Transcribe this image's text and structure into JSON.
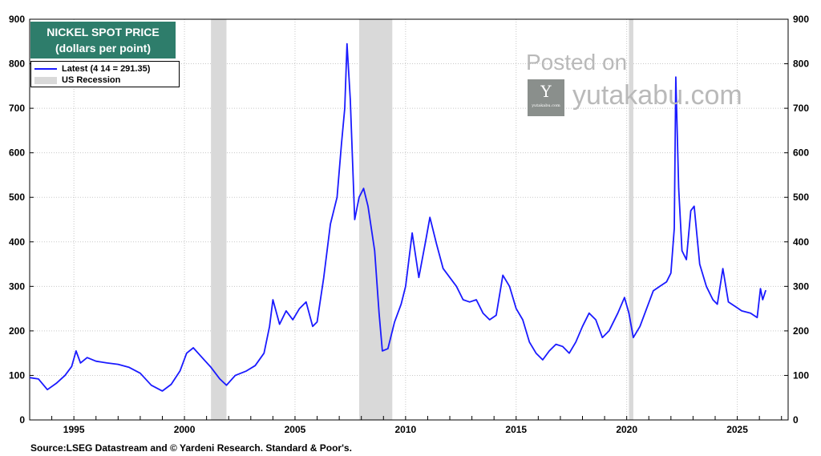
{
  "chart_data": {
    "type": "line",
    "title": "NICKEL SPOT PRICE",
    "subtitle": "(dollars per point)",
    "ylim": [
      0,
      900
    ],
    "xlim": [
      1993.0,
      2027.3
    ],
    "y_ticks": [
      0,
      100,
      200,
      300,
      400,
      500,
      600,
      700,
      800,
      900
    ],
    "x_ticks": [
      1995,
      2000,
      2005,
      2010,
      2015,
      2020,
      2025
    ],
    "grid": true,
    "legend_placement": "top-left",
    "legend": {
      "latest_label": "Latest (4 14 = 291.35)",
      "recession_label": "US Recession"
    },
    "recessions": [
      [
        2001.2,
        2001.9
      ],
      [
        2007.9,
        2009.4
      ],
      [
        2020.1,
        2020.3
      ]
    ],
    "series": [
      {
        "color": "#1a1aff",
        "points": [
          [
            1993.0,
            95
          ],
          [
            1993.4,
            92
          ],
          [
            1993.8,
            68
          ],
          [
            1994.2,
            82
          ],
          [
            1994.6,
            100
          ],
          [
            1994.9,
            120
          ],
          [
            1995.1,
            155
          ],
          [
            1995.3,
            128
          ],
          [
            1995.6,
            140
          ],
          [
            1996.0,
            132
          ],
          [
            1996.5,
            128
          ],
          [
            1997.0,
            125
          ],
          [
            1997.5,
            118
          ],
          [
            1998.0,
            105
          ],
          [
            1998.5,
            78
          ],
          [
            1999.0,
            65
          ],
          [
            1999.4,
            80
          ],
          [
            1999.8,
            110
          ],
          [
            2000.1,
            150
          ],
          [
            2000.4,
            162
          ],
          [
            2000.8,
            140
          ],
          [
            2001.2,
            118
          ],
          [
            2001.6,
            92
          ],
          [
            2001.9,
            78
          ],
          [
            2002.3,
            100
          ],
          [
            2002.8,
            110
          ],
          [
            2003.2,
            122
          ],
          [
            2003.6,
            150
          ],
          [
            2003.85,
            210
          ],
          [
            2004.0,
            270
          ],
          [
            2004.3,
            215
          ],
          [
            2004.6,
            245
          ],
          [
            2004.9,
            225
          ],
          [
            2005.2,
            250
          ],
          [
            2005.5,
            265
          ],
          [
            2005.8,
            210
          ],
          [
            2006.0,
            220
          ],
          [
            2006.3,
            320
          ],
          [
            2006.6,
            440
          ],
          [
            2006.9,
            500
          ],
          [
            2007.1,
            620
          ],
          [
            2007.25,
            700
          ],
          [
            2007.35,
            845
          ],
          [
            2007.5,
            720
          ],
          [
            2007.7,
            450
          ],
          [
            2007.9,
            500
          ],
          [
            2008.1,
            520
          ],
          [
            2008.3,
            480
          ],
          [
            2008.6,
            380
          ],
          [
            2008.8,
            240
          ],
          [
            2008.95,
            155
          ],
          [
            2009.2,
            160
          ],
          [
            2009.5,
            220
          ],
          [
            2009.8,
            260
          ],
          [
            2010.0,
            300
          ],
          [
            2010.3,
            420
          ],
          [
            2010.6,
            320
          ],
          [
            2010.9,
            400
          ],
          [
            2011.1,
            455
          ],
          [
            2011.4,
            395
          ],
          [
            2011.7,
            340
          ],
          [
            2012.0,
            320
          ],
          [
            2012.3,
            300
          ],
          [
            2012.6,
            270
          ],
          [
            2012.9,
            265
          ],
          [
            2013.2,
            270
          ],
          [
            2013.5,
            240
          ],
          [
            2013.8,
            225
          ],
          [
            2014.1,
            235
          ],
          [
            2014.4,
            325
          ],
          [
            2014.7,
            300
          ],
          [
            2015.0,
            250
          ],
          [
            2015.3,
            225
          ],
          [
            2015.6,
            175
          ],
          [
            2015.9,
            150
          ],
          [
            2016.2,
            135
          ],
          [
            2016.5,
            155
          ],
          [
            2016.8,
            170
          ],
          [
            2017.1,
            165
          ],
          [
            2017.4,
            150
          ],
          [
            2017.7,
            175
          ],
          [
            2018.0,
            210
          ],
          [
            2018.3,
            240
          ],
          [
            2018.6,
            225
          ],
          [
            2018.9,
            185
          ],
          [
            2019.2,
            200
          ],
          [
            2019.6,
            240
          ],
          [
            2019.9,
            275
          ],
          [
            2020.1,
            240
          ],
          [
            2020.3,
            185
          ],
          [
            2020.6,
            210
          ],
          [
            2020.9,
            250
          ],
          [
            2021.2,
            290
          ],
          [
            2021.5,
            300
          ],
          [
            2021.8,
            310
          ],
          [
            2022.0,
            330
          ],
          [
            2022.15,
            430
          ],
          [
            2022.22,
            770
          ],
          [
            2022.35,
            520
          ],
          [
            2022.5,
            380
          ],
          [
            2022.7,
            360
          ],
          [
            2022.9,
            470
          ],
          [
            2023.05,
            480
          ],
          [
            2023.3,
            350
          ],
          [
            2023.6,
            300
          ],
          [
            2023.9,
            270
          ],
          [
            2024.1,
            260
          ],
          [
            2024.35,
            340
          ],
          [
            2024.6,
            265
          ],
          [
            2024.9,
            255
          ],
          [
            2025.2,
            245
          ],
          [
            2025.6,
            240
          ],
          [
            2025.9,
            230
          ],
          [
            2026.05,
            295
          ],
          [
            2026.15,
            270
          ],
          [
            2026.29,
            291.35
          ]
        ]
      }
    ]
  },
  "watermark": {
    "line1": "Posted on",
    "site": "yutakabu.com",
    "logo_glyph": "Y",
    "logo_small": "yutakabu.com"
  },
  "source": "Source:LSEG Datastream and © Yardeni Research. Standard & Poor's."
}
